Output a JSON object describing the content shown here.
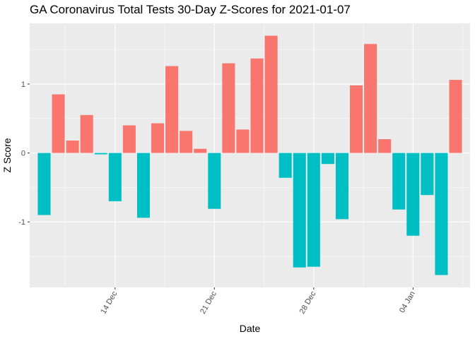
{
  "chart_data": {
    "type": "bar",
    "title": "GA Coronavirus Total Tests 30-Day Z-Scores for 2021-01-07",
    "xlabel": "Date",
    "ylabel": "Z Score",
    "dates": [
      "2020-12-09",
      "2020-12-10",
      "2020-12-11",
      "2020-12-12",
      "2020-12-13",
      "2020-12-14",
      "2020-12-15",
      "2020-12-16",
      "2020-12-17",
      "2020-12-18",
      "2020-12-19",
      "2020-12-20",
      "2020-12-21",
      "2020-12-22",
      "2020-12-23",
      "2020-12-24",
      "2020-12-25",
      "2020-12-26",
      "2020-12-27",
      "2020-12-28",
      "2020-12-29",
      "2020-12-30",
      "2020-12-31",
      "2021-01-01",
      "2021-01-02",
      "2021-01-03",
      "2021-01-04",
      "2021-01-05",
      "2021-01-06",
      "2021-01-07"
    ],
    "values": [
      -0.9,
      0.85,
      0.18,
      0.55,
      -0.02,
      -0.7,
      0.4,
      -0.94,
      0.43,
      1.26,
      0.32,
      0.06,
      -0.81,
      1.3,
      0.34,
      1.37,
      1.7,
      -0.36,
      -1.66,
      -1.65,
      -0.16,
      -0.96,
      0.98,
      1.58,
      0.2,
      -0.82,
      -1.2,
      -0.61,
      -1.77,
      1.06
    ],
    "x_ticks": [
      {
        "date": "2020-12-14",
        "label": "14 Dec"
      },
      {
        "date": "2020-12-21",
        "label": "21 Dec"
      },
      {
        "date": "2020-12-28",
        "label": "28 Dec"
      },
      {
        "date": "2021-01-04",
        "label": "04 Jan"
      }
    ],
    "y_ticks": [
      -1,
      0,
      1
    ],
    "y_tick_labels": [
      "-1",
      "0",
      "1"
    ],
    "ylim": [
      -1.95,
      1.88
    ],
    "grid": true,
    "legend": "none",
    "colors": {
      "positive": "#F8766D",
      "negative": "#00BFC4",
      "panel": "#EBEBEB",
      "grid": "#FFFFFF"
    }
  }
}
